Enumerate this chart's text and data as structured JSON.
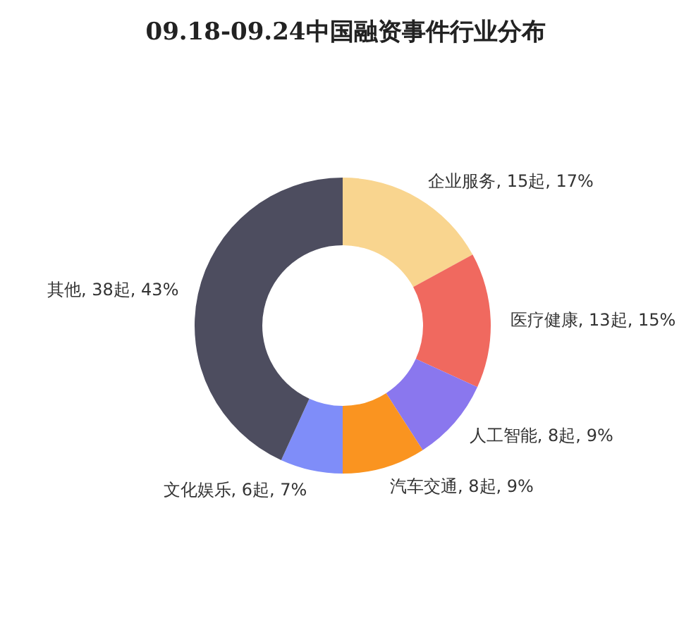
{
  "chart_data": {
    "type": "donut",
    "title": "09.18-09.24中国融资事件行业分布",
    "categories": [
      "企业服务",
      "医疗健康",
      "人工智能",
      "汽车交通",
      "文化娱乐",
      "其他"
    ],
    "values": [
      15,
      13,
      8,
      8,
      6,
      38
    ],
    "value_labels": [
      "15起, 17%",
      "13起, 15%",
      "8起, 9%",
      "8起, 9%",
      "6起, 7%",
      "38起, 43%"
    ],
    "colors": [
      "#f9d58f",
      "#f0695f",
      "#8a77ee",
      "#fa9420",
      "#7f8df9",
      "#4d4d5f"
    ]
  }
}
